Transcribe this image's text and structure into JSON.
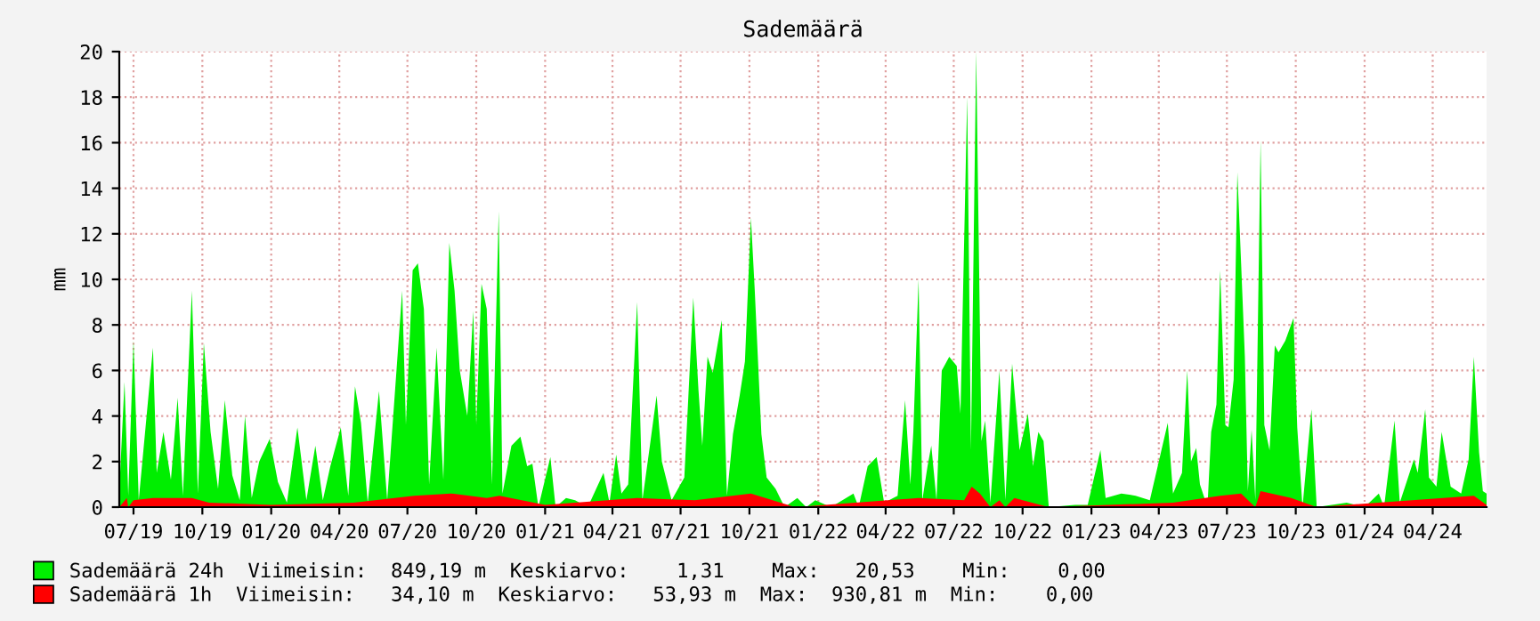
{
  "chart_data": {
    "type": "area",
    "title": "Sademäärä",
    "ylabel": "mm",
    "xlim": [
      "2019-06-12",
      "2024-06-12"
    ],
    "ylim": [
      0,
      20
    ],
    "yticks": [
      0,
      2,
      4,
      6,
      8,
      10,
      12,
      14,
      16,
      18,
      20
    ],
    "xticks": [
      {
        "value": "2019-07-01",
        "label": "07/19"
      },
      {
        "value": "2019-10-01",
        "label": "10/19"
      },
      {
        "value": "2020-01-01",
        "label": "01/20"
      },
      {
        "value": "2020-04-01",
        "label": "04/20"
      },
      {
        "value": "2020-07-01",
        "label": "07/20"
      },
      {
        "value": "2020-10-01",
        "label": "10/20"
      },
      {
        "value": "2021-01-01",
        "label": "01/21"
      },
      {
        "value": "2021-04-01",
        "label": "04/21"
      },
      {
        "value": "2021-07-01",
        "label": "07/21"
      },
      {
        "value": "2021-10-01",
        "label": "10/21"
      },
      {
        "value": "2022-01-01",
        "label": "01/22"
      },
      {
        "value": "2022-04-01",
        "label": "04/22"
      },
      {
        "value": "2022-07-01",
        "label": "07/22"
      },
      {
        "value": "2022-10-01",
        "label": "10/22"
      },
      {
        "value": "2023-01-01",
        "label": "01/23"
      },
      {
        "value": "2023-04-01",
        "label": "04/23"
      },
      {
        "value": "2023-07-01",
        "label": "07/23"
      },
      {
        "value": "2023-10-01",
        "label": "10/23"
      },
      {
        "value": "2024-01-01",
        "label": "01/24"
      },
      {
        "value": "2024-04-01",
        "label": "04/24"
      }
    ],
    "grid": true,
    "legend": "bottom left",
    "series": [
      {
        "name": "Sademäärä 24h  Viimeisin:  849,19 m  Keskiarvo:    1,31    Max:   20,53    Min:    0,00",
        "color": "#00ee00",
        "x": [
          "2019-06-12",
          "2019-06-19",
          "2019-06-24",
          "2019-07-01",
          "2019-07-08",
          "2019-07-27",
          "2019-08-01",
          "2019-08-10",
          "2019-08-20",
          "2019-08-29",
          "2019-09-05",
          "2019-09-17",
          "2019-09-25",
          "2019-10-03",
          "2019-10-12",
          "2019-10-22",
          "2019-10-31",
          "2019-11-10",
          "2019-11-20",
          "2019-11-27",
          "2019-12-06",
          "2019-12-16",
          "2019-12-30",
          "2020-01-10",
          "2020-01-22",
          "2020-02-05",
          "2020-02-17",
          "2020-02-29",
          "2020-03-10",
          "2020-03-20",
          "2020-04-03",
          "2020-04-13",
          "2020-04-22",
          "2020-04-30",
          "2020-05-09",
          "2020-05-24",
          "2020-06-04",
          "2020-06-24",
          "2020-06-29",
          "2020-07-08",
          "2020-07-15",
          "2020-07-23",
          "2020-07-30",
          "2020-08-09",
          "2020-08-18",
          "2020-08-26",
          "2020-09-02",
          "2020-09-09",
          "2020-09-19",
          "2020-09-27",
          "2020-10-01",
          "2020-10-08",
          "2020-10-15",
          "2020-10-22",
          "2020-10-31",
          "2020-11-05",
          "2020-11-17",
          "2020-11-29",
          "2020-12-08",
          "2020-12-15",
          "2020-12-23",
          "2021-01-08",
          "2021-01-15",
          "2021-01-29",
          "2021-02-10",
          "2021-02-27",
          "2021-03-20",
          "2021-03-28",
          "2021-04-06",
          "2021-04-13",
          "2021-04-22",
          "2021-05-04",
          "2021-05-11",
          "2021-05-21",
          "2021-05-30",
          "2021-06-06",
          "2021-06-19",
          "2021-07-06",
          "2021-07-18",
          "2021-07-25",
          "2021-07-30",
          "2021-08-06",
          "2021-08-13",
          "2021-08-25",
          "2021-09-01",
          "2021-09-09",
          "2021-09-18",
          "2021-09-25",
          "2021-10-03",
          "2021-10-08",
          "2021-10-17",
          "2021-10-24",
          "2021-11-05",
          "2021-11-17",
          "2021-12-04",
          "2021-12-16",
          "2021-12-28",
          "2022-01-18",
          "2022-02-17",
          "2022-02-24",
          "2022-03-08",
          "2022-03-20",
          "2022-03-30",
          "2022-04-17",
          "2022-04-27",
          "2022-05-04",
          "2022-05-08",
          "2022-05-15",
          "2022-05-20",
          "2022-05-27",
          "2022-06-01",
          "2022-06-08",
          "2022-06-15",
          "2022-06-25",
          "2022-07-05",
          "2022-07-10",
          "2022-07-19",
          "2022-07-24",
          "2022-07-31",
          "2022-08-07",
          "2022-08-12",
          "2022-08-19",
          "2022-08-31",
          "2022-09-08",
          "2022-09-17",
          "2022-09-27",
          "2022-10-08",
          "2022-10-15",
          "2022-10-22",
          "2022-10-29",
          "2022-11-05",
          "2022-12-10",
          "2022-12-27",
          "2023-01-13",
          "2023-01-20",
          "2023-02-10",
          "2023-03-01",
          "2023-03-20",
          "2023-04-13",
          "2023-04-20",
          "2023-05-02",
          "2023-05-09",
          "2023-05-14",
          "2023-05-21",
          "2023-05-26",
          "2023-06-05",
          "2023-06-10",
          "2023-06-17",
          "2023-06-22",
          "2023-06-29",
          "2023-07-03",
          "2023-07-10",
          "2023-07-15",
          "2023-07-20",
          "2023-07-25",
          "2023-07-29",
          "2023-08-03",
          "2023-08-08",
          "2023-08-15",
          "2023-08-20",
          "2023-08-27",
          "2023-09-03",
          "2023-09-08",
          "2023-09-17",
          "2023-09-28",
          "2023-10-03",
          "2023-10-10",
          "2023-10-22",
          "2023-10-29",
          "2023-12-08",
          "2024-01-01",
          "2024-01-20",
          "2024-01-27",
          "2024-02-10",
          "2024-02-17",
          "2024-02-29",
          "2024-03-07",
          "2024-03-12",
          "2024-03-22",
          "2024-03-27",
          "2024-04-06",
          "2024-04-13",
          "2024-04-25",
          "2024-05-09",
          "2024-05-19",
          "2024-05-26",
          "2024-06-02",
          "2024-06-07",
          "2024-06-12"
        ],
        "values": [
          0.7,
          5.5,
          0.5,
          7.3,
          0.3,
          7.0,
          1.5,
          3.3,
          1.2,
          4.8,
          0.5,
          9.5,
          0.6,
          7.2,
          3.3,
          0.8,
          4.7,
          1.4,
          0.3,
          4.0,
          0.4,
          2.0,
          3.0,
          1.1,
          0.2,
          3.5,
          0.3,
          2.7,
          0.3,
          1.8,
          3.5,
          0.5,
          5.3,
          3.7,
          0.2,
          5.1,
          0.3,
          9.5,
          3.6,
          10.4,
          10.7,
          8.7,
          1.0,
          7.0,
          1.2,
          11.6,
          9.5,
          6.0,
          4.0,
          8.6,
          3.6,
          9.8,
          8.7,
          1.0,
          13.0,
          0.6,
          2.7,
          3.1,
          1.8,
          1.9,
          0,
          2.2,
          0,
          0.4,
          0.3,
          0,
          1.5,
          0.2,
          2.3,
          0.6,
          1.0,
          9.0,
          0.3,
          2.7,
          4.9,
          2.0,
          0.3,
          1.3,
          9.2,
          5.1,
          2.7,
          6.6,
          5.9,
          8.2,
          0.5,
          3.2,
          4.9,
          6.4,
          12.7,
          9.6,
          3.2,
          1.3,
          0.8,
          0,
          0.4,
          0,
          0.3,
          0,
          0.6,
          0,
          1.8,
          2.2,
          0.2,
          0.5,
          4.7,
          1.0,
          3.3,
          10.0,
          0.3,
          1.8,
          2.7,
          0.3,
          6.0,
          6.6,
          6.2,
          4.1,
          18.0,
          2.5,
          20.0,
          2.9,
          3.8,
          0.2,
          6.0,
          0.3,
          6.3,
          2.5,
          4.1,
          1.8,
          3.3,
          2.9,
          0,
          0.1,
          0.1,
          2.5,
          0.4,
          0.6,
          0.5,
          0.3,
          3.7,
          0.6,
          1.5,
          6.0,
          2.0,
          2.6,
          1.0,
          0,
          3.3,
          4.5,
          10.4,
          3.6,
          3.5,
          5.6,
          14.7,
          10.7,
          6.6,
          0.7,
          3.4,
          0.3,
          16.1,
          3.6,
          2.5,
          7.1,
          6.8,
          7.3,
          8.3,
          3.5,
          0,
          4.3,
          0,
          0.2,
          0,
          0.6,
          0,
          3.8,
          0.2,
          1.4,
          2.1,
          1.5,
          4.3,
          1.3,
          0.9,
          3.3,
          0.9,
          0.6,
          2.1,
          6.6,
          2.4,
          0.7,
          0.6
        ]
      },
      {
        "name": "Sademäärä 1h  Viimeisin:   34,10 m  Keskiarvo:   53,93 m  Max:  930,81 m  Min:    0,00",
        "color": "#ff0000",
        "x": [
          "2019-06-12",
          "2019-06-22",
          "2019-06-24",
          "2019-07-01",
          "2019-07-27",
          "2019-09-17",
          "2019-10-10",
          "2020-01-01",
          "2020-04-20",
          "2020-07-10",
          "2020-08-28",
          "2020-10-15",
          "2020-11-01",
          "2021-01-01",
          "2021-05-04",
          "2021-07-20",
          "2021-10-03",
          "2021-12-01",
          "2022-05-15",
          "2022-07-15",
          "2022-07-25",
          "2022-08-05",
          "2022-08-19",
          "2022-08-31",
          "2022-09-08",
          "2022-09-20",
          "2022-11-05",
          "2023-04-20",
          "2023-06-22",
          "2023-07-20",
          "2023-08-08",
          "2023-08-15",
          "2023-09-25",
          "2023-10-29",
          "2024-05-26",
          "2024-06-12"
        ],
        "values": [
          0.0,
          0.4,
          0.0,
          0.3,
          0.4,
          0.4,
          0.2,
          0.1,
          0.2,
          0.5,
          0.6,
          0.4,
          0.5,
          0.1,
          0.4,
          0.3,
          0.6,
          0.0,
          0.4,
          0.3,
          0.9,
          0.6,
          0.0,
          0.3,
          0.0,
          0.4,
          0.0,
          0.2,
          0.5,
          0.6,
          0.0,
          0.7,
          0.4,
          0.0,
          0.5,
          0.1
        ]
      }
    ]
  }
}
